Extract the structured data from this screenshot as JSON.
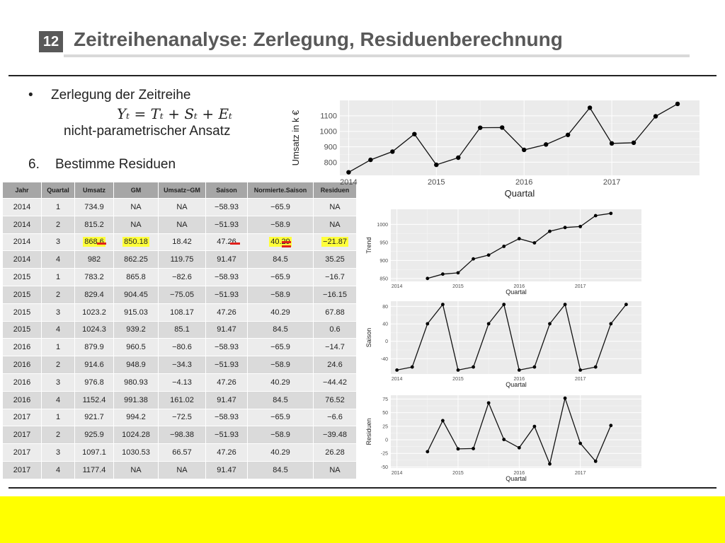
{
  "slide": {
    "number": "12",
    "title": "Zeitreihenanalyse: Zerlegung, Residuenberechnung"
  },
  "content": {
    "bullet_symbol": "•",
    "bullet_text": "Zerlegung der Zeitreihe",
    "formula": "Yₜ = Tₜ + Sₜ  + Eₜ",
    "approach": "nicht-parametrischer Ansatz",
    "step_number": "6.",
    "step_text": "Bestimme Residuen"
  },
  "table": {
    "columns": [
      "Jahr",
      "Quartal",
      "Umsatz",
      "GM",
      "Umsatz−GM",
      "Saison",
      "Normierte.Saison",
      "Residuen"
    ],
    "rows": [
      [
        "2014",
        "1",
        "734.9",
        "NA",
        "NA",
        "−58.93",
        "−65.9",
        "NA"
      ],
      [
        "2014",
        "2",
        "815.2",
        "NA",
        "NA",
        "−51.93",
        "−58.9",
        "NA"
      ],
      [
        "2014",
        "3",
        "868.6",
        "850.18",
        "18.42",
        "47.26",
        "40.29",
        "−21.87"
      ],
      [
        "2014",
        "4",
        "982",
        "862.25",
        "119.75",
        "91.47",
        "84.5",
        "35.25"
      ],
      [
        "2015",
        "1",
        "783.2",
        "865.8",
        "−82.6",
        "−58.93",
        "−65.9",
        "−16.7"
      ],
      [
        "2015",
        "2",
        "829.4",
        "904.45",
        "−75.05",
        "−51.93",
        "−58.9",
        "−16.15"
      ],
      [
        "2015",
        "3",
        "1023.2",
        "915.03",
        "108.17",
        "47.26",
        "40.29",
        "67.88"
      ],
      [
        "2015",
        "4",
        "1024.3",
        "939.2",
        "85.1",
        "91.47",
        "84.5",
        "0.6"
      ],
      [
        "2016",
        "1",
        "879.9",
        "960.5",
        "−80.6",
        "−58.93",
        "−65.9",
        "−14.7"
      ],
      [
        "2016",
        "2",
        "914.6",
        "948.9",
        "−34.3",
        "−51.93",
        "−58.9",
        "24.6"
      ],
      [
        "2016",
        "3",
        "976.8",
        "980.93",
        "−4.13",
        "47.26",
        "40.29",
        "−44.42"
      ],
      [
        "2016",
        "4",
        "1152.4",
        "991.38",
        "161.02",
        "91.47",
        "84.5",
        "76.52"
      ],
      [
        "2017",
        "1",
        "921.7",
        "994.2",
        "−72.5",
        "−58.93",
        "−65.9",
        "−6.6"
      ],
      [
        "2017",
        "2",
        "925.9",
        "1024.28",
        "−98.38",
        "−51.93",
        "−58.9",
        "−39.48"
      ],
      [
        "2017",
        "3",
        "1097.1",
        "1030.53",
        "66.57",
        "47.26",
        "40.29",
        "26.28"
      ],
      [
        "2017",
        "4",
        "1177.4",
        "NA",
        "NA",
        "91.47",
        "84.5",
        "NA"
      ]
    ],
    "highlight_row": 2,
    "highlight_columns": [
      2,
      3,
      6,
      7
    ],
    "highlight_color": "#ffff3a",
    "mark_color": "#e0201b"
  },
  "chart_data": [
    {
      "type": "line",
      "xlabel": "Quartal",
      "ylabel": "Umsatz in k €",
      "x": [
        2014.0,
        2014.25,
        2014.5,
        2014.75,
        2015.0,
        2015.25,
        2015.5,
        2015.75,
        2016.0,
        2016.25,
        2016.5,
        2016.75,
        2017.0,
        2017.25,
        2017.5,
        2017.75
      ],
      "values": [
        734.9,
        815.2,
        868.6,
        982,
        783.2,
        829.4,
        1023.2,
        1024.3,
        879.9,
        914.6,
        976.8,
        1152.4,
        921.7,
        925.9,
        1097.1,
        1177.4
      ],
      "xlim": [
        2013.9,
        2018.0
      ],
      "ylim": [
        715,
        1200
      ],
      "xticks": [
        2014,
        2015,
        2016,
        2017
      ],
      "yticks": [
        800,
        900,
        1000,
        1100
      ],
      "grid": true
    },
    {
      "type": "line",
      "xlabel": "Quartal",
      "ylabel": "Trend",
      "x": [
        2014.5,
        2014.75,
        2015.0,
        2015.25,
        2015.5,
        2015.75,
        2016.0,
        2016.25,
        2016.5,
        2016.75,
        2017.0,
        2017.25,
        2017.5
      ],
      "values": [
        850.18,
        862.25,
        865.8,
        904.45,
        915.03,
        939.2,
        960.5,
        948.9,
        980.93,
        991.38,
        994.2,
        1024.28,
        1030.53
      ],
      "xlim": [
        2013.9,
        2018.0
      ],
      "ylim": [
        842,
        1042
      ],
      "xticks": [
        2014,
        2015,
        2016,
        2017
      ],
      "yticks": [
        850,
        900,
        950,
        1000
      ],
      "grid": true
    },
    {
      "type": "line",
      "xlabel": "Quartal",
      "ylabel": "Saison",
      "x": [
        2014.0,
        2014.25,
        2014.5,
        2014.75,
        2015.0,
        2015.25,
        2015.5,
        2015.75,
        2016.0,
        2016.25,
        2016.5,
        2016.75,
        2017.0,
        2017.25,
        2017.5,
        2017.75
      ],
      "values": [
        -65.9,
        -58.9,
        40.29,
        84.5,
        -65.9,
        -58.9,
        40.29,
        84.5,
        -65.9,
        -58.9,
        40.29,
        84.5,
        -65.9,
        -58.9,
        40.29,
        84.5
      ],
      "xlim": [
        2013.9,
        2018.0
      ],
      "ylim": [
        -75,
        92
      ],
      "xticks": [
        2014,
        2015,
        2016,
        2017
      ],
      "yticks": [
        -40,
        0,
        40,
        80
      ],
      "grid": true
    },
    {
      "type": "line",
      "xlabel": "Quartal",
      "ylabel": "Residuen",
      "x": [
        2014.5,
        2014.75,
        2015.0,
        2015.25,
        2015.5,
        2015.75,
        2016.0,
        2016.25,
        2016.5,
        2016.75,
        2017.0,
        2017.25,
        2017.5
      ],
      "values": [
        -21.87,
        35.25,
        -16.7,
        -16.15,
        67.88,
        0.6,
        -14.7,
        24.6,
        -44.42,
        76.52,
        -6.6,
        -39.48,
        26.28
      ],
      "xlim": [
        2013.9,
        2018.0
      ],
      "ylim": [
        -52,
        82
      ],
      "xticks": [
        2014,
        2015,
        2016,
        2017
      ],
      "yticks": [
        -50,
        -25,
        0,
        25,
        50,
        75
      ],
      "grid": true
    }
  ]
}
